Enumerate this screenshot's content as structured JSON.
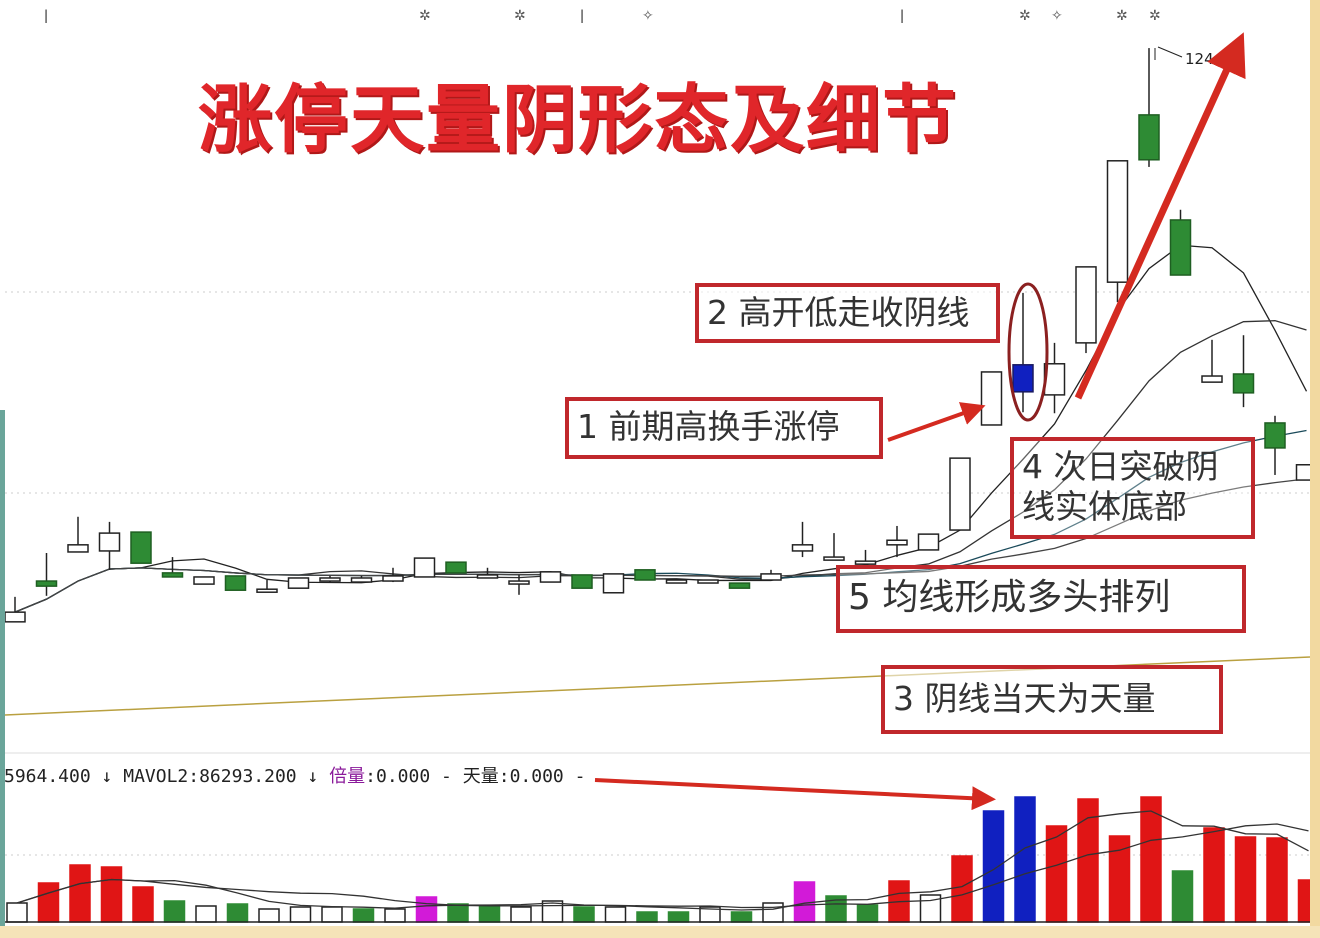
{
  "title": "涨停天量阴形态及细节",
  "annotations": {
    "box1": "1 前期高换手涨停",
    "box2": "2 高开低走收阴线",
    "box3": "3 阴线当天为天量",
    "box4_line1": "4 次日突破阴",
    "box4_line2": "线实体底部",
    "box5": "5 均线形成多头排列"
  },
  "indicator": {
    "mavol1": "5964.400",
    "arrow1": "↓",
    "mavol2_label": "MAVOL2:",
    "mavol2": "86293.200",
    "arrow2": "↓",
    "beiliang_label": "倍量",
    "beiliang": ":0.000",
    "dash1": "-",
    "tianliang_label": "天量",
    "tianliang": ":0.000",
    "dash2": "-"
  },
  "high_label": "124",
  "colors": {
    "up": "#ffffff",
    "down": "#2e8b34",
    "special": "#1020c0",
    "vol_up": "#e01515",
    "vol_down": "#2e8b34",
    "vol_special": "#1020c0",
    "vol_magenta": "#d21ad8",
    "annotation": "#c0282c",
    "title": "#e0262a"
  },
  "chart_data": {
    "type": "candlestick",
    "candles": [
      {
        "o": 11.6,
        "h": 16.5,
        "l": 11.6,
        "c": 13.5
      },
      {
        "o": 19.6,
        "h": 25.1,
        "l": 16.7,
        "c": 18.6
      },
      {
        "o": 25.3,
        "h": 32.2,
        "l": 25.3,
        "c": 26.7
      },
      {
        "o": 25.5,
        "h": 31.2,
        "l": 21.8,
        "c": 29.0
      },
      {
        "o": 29.2,
        "h": 29.2,
        "l": 23.1,
        "c": 23.1
      },
      {
        "o": 21.2,
        "h": 24.3,
        "l": 20.4,
        "c": 20.4
      },
      {
        "o": 19.0,
        "h": 20.4,
        "l": 19.0,
        "c": 20.4
      },
      {
        "o": 20.6,
        "h": 20.6,
        "l": 17.8,
        "c": 17.8
      },
      {
        "o": 17.5,
        "h": 19.8,
        "l": 17.5,
        "c": 18.0
      },
      {
        "o": 18.2,
        "h": 20.2,
        "l": 18.2,
        "c": 20.2
      },
      {
        "o": 19.6,
        "h": 20.6,
        "l": 19.4,
        "c": 20.2
      },
      {
        "o": 19.4,
        "h": 20.6,
        "l": 19.4,
        "c": 20.2
      },
      {
        "o": 19.6,
        "h": 22.2,
        "l": 19.4,
        "c": 20.6
      },
      {
        "o": 20.4,
        "h": 24.1,
        "l": 20.4,
        "c": 24.1
      },
      {
        "o": 23.3,
        "h": 23.3,
        "l": 21.2,
        "c": 21.2
      },
      {
        "o": 20.2,
        "h": 22.2,
        "l": 20.2,
        "c": 20.8
      },
      {
        "o": 19.4,
        "h": 20.8,
        "l": 16.9,
        "c": 19.6
      },
      {
        "o": 19.4,
        "h": 21.4,
        "l": 19.4,
        "c": 21.4
      },
      {
        "o": 20.8,
        "h": 20.8,
        "l": 18.2,
        "c": 18.2
      },
      {
        "o": 17.3,
        "h": 21.0,
        "l": 17.3,
        "c": 21.0
      },
      {
        "o": 21.8,
        "h": 21.8,
        "l": 19.8,
        "c": 19.8
      },
      {
        "o": 19.4,
        "h": 19.8,
        "l": 19.2,
        "c": 19.8
      },
      {
        "o": 19.4,
        "h": 19.8,
        "l": 19.2,
        "c": 19.8
      },
      {
        "o": 19.2,
        "h": 19.2,
        "l": 18.2,
        "c": 18.2
      },
      {
        "o": 19.8,
        "h": 21.8,
        "l": 19.8,
        "c": 21.0
      },
      {
        "o": 25.5,
        "h": 31.2,
        "l": 24.3,
        "c": 26.7
      },
      {
        "o": 23.7,
        "h": 29.0,
        "l": 23.7,
        "c": 24.3
      },
      {
        "o": 23.1,
        "h": 25.7,
        "l": 23.1,
        "c": 23.5
      },
      {
        "o": 26.7,
        "h": 30.4,
        "l": 24.3,
        "c": 27.6
      },
      {
        "o": 25.7,
        "h": 28.8,
        "l": 25.7,
        "c": 28.8
      },
      {
        "o": 29.6,
        "h": 43.7,
        "l": 29.6,
        "c": 43.7
      },
      {
        "o": 50.2,
        "h": 60.6,
        "l": 50.2,
        "c": 60.6
      },
      {
        "o": 62.0,
        "h": 76.1,
        "l": 52.7,
        "c": 56.7,
        "special": true
      },
      {
        "o": 56.1,
        "h": 66.3,
        "l": 52.5,
        "c": 62.2
      },
      {
        "o": 66.3,
        "h": 81.2,
        "l": 64.3,
        "c": 81.2
      },
      {
        "o": 78.2,
        "h": 102.0,
        "l": 74.3,
        "c": 102.0
      },
      {
        "o": 111.0,
        "h": 124.1,
        "l": 100.8,
        "c": 102.2
      },
      {
        "o": 90.4,
        "h": 92.4,
        "l": 79.6,
        "c": 79.6
      },
      {
        "o": 58.6,
        "h": 66.9,
        "l": 58.6,
        "c": 59.8
      },
      {
        "o": 60.2,
        "h": 67.8,
        "l": 53.7,
        "c": 56.5
      },
      {
        "o": 50.6,
        "h": 52.0,
        "l": 40.4,
        "c": 45.7
      },
      {
        "o": 39.4,
        "h": 42.4,
        "l": 39.4,
        "c": 42.4
      }
    ],
    "volume": [
      19,
      39,
      57,
      55,
      35,
      21,
      16,
      18,
      13,
      15,
      15,
      13,
      13,
      25,
      18,
      16,
      15,
      21,
      15,
      15,
      10,
      10,
      15,
      10,
      19,
      40,
      26,
      17,
      41,
      27,
      66,
      111,
      125,
      96,
      123,
      86,
      125,
      51,
      94,
      85,
      84,
      42
    ],
    "volume_colors": [
      "hollow",
      "up",
      "up",
      "up",
      "up",
      "down",
      "hollow",
      "down",
      "hollow",
      "hollow",
      "hollow",
      "down",
      "hollow",
      "magenta",
      "down",
      "down",
      "hollow",
      "hollow",
      "down",
      "hollow",
      "down",
      "down",
      "hollow",
      "down",
      "hollow",
      "magenta",
      "down",
      "down",
      "up",
      "hollow",
      "up",
      "special",
      "special",
      "up",
      "up",
      "up",
      "up",
      "down",
      "up",
      "up",
      "up",
      "up"
    ],
    "price_max_label": 124,
    "grid": true
  }
}
